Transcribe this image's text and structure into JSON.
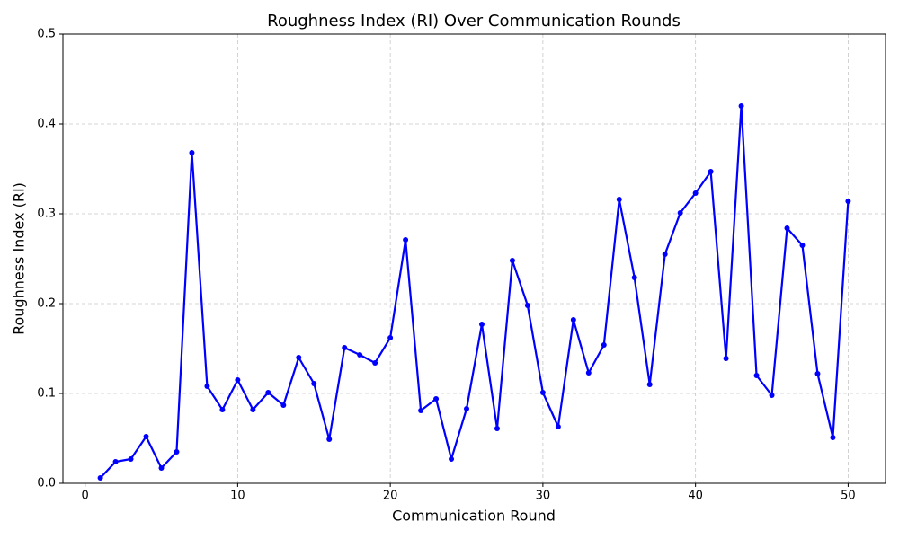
{
  "chart_data": {
    "type": "line",
    "title": "Roughness Index (RI) Over Communication Rounds",
    "x_label": "Communication Round",
    "y_label": "Roughness Index (RI)",
    "x": [
      1,
      2,
      3,
      4,
      5,
      6,
      7,
      8,
      9,
      10,
      11,
      12,
      13,
      14,
      15,
      16,
      17,
      18,
      19,
      20,
      21,
      22,
      23,
      24,
      25,
      26,
      27,
      28,
      29,
      30,
      31,
      32,
      33,
      34,
      35,
      36,
      37,
      38,
      39,
      40,
      41,
      42,
      43,
      44,
      45,
      46,
      47,
      48,
      49,
      50
    ],
    "series": [
      {
        "name": "RI",
        "color": "#0000ff",
        "values": [
          0.006,
          0.024,
          0.027,
          0.052,
          0.017,
          0.035,
          0.368,
          0.108,
          0.082,
          0.115,
          0.082,
          0.101,
          0.087,
          0.14,
          0.111,
          0.049,
          0.151,
          0.143,
          0.134,
          0.162,
          0.271,
          0.081,
          0.094,
          0.027,
          0.083,
          0.177,
          0.061,
          0.248,
          0.198,
          0.101,
          0.063,
          0.182,
          0.123,
          0.154,
          0.316,
          0.229,
          0.11,
          0.255,
          0.301,
          0.323,
          0.347,
          0.139,
          0.42,
          0.12,
          0.098,
          0.284,
          0.265,
          0.122,
          0.051,
          0.314
        ]
      }
    ],
    "xlim": [
      -1.45,
      52.45
    ],
    "ylim": [
      0,
      0.5
    ],
    "xticks": [
      0,
      10,
      20,
      30,
      40,
      50
    ],
    "yticks": [
      {
        "value": 0,
        "label": "0.0"
      },
      0.1,
      0.2,
      0.3,
      0.4,
      0.5
    ],
    "grid": true
  }
}
